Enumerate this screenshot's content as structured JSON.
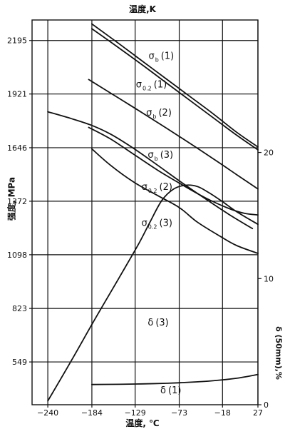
{
  "chart_data": {
    "type": "line",
    "title_top": "温度,K",
    "xlabel": "温度, ℃",
    "ylabel_left": "强度, MPa",
    "ylabel_right": "δ (50mm),%",
    "xlim": [
      -260,
      27
    ],
    "ylim_left": [
      330,
      2300
    ],
    "ylim_right": [
      0,
      30.5
    ],
    "x_ticks": [
      -240,
      -184,
      -129,
      -73,
      -18,
      27
    ],
    "y_ticks_left": [
      549,
      823,
      1098,
      1372,
      1646,
      1921,
      2195
    ],
    "y_ticks_right": [
      0,
      10,
      20
    ],
    "grid": true,
    "series": [
      {
        "name": "σb(1)",
        "axis": "left",
        "x": [
          -184,
          -150,
          -120,
          -90,
          -60,
          -30,
          0,
          27
        ],
        "y": [
          2280,
          2180,
          2090,
          2000,
          1910,
          1820,
          1725,
          1650
        ]
      },
      {
        "name": "σ0.2(1)",
        "axis": "left",
        "x": [
          -184,
          -150,
          -120,
          -90,
          -60,
          -30,
          0,
          27
        ],
        "y": [
          2255,
          2158,
          2070,
          1980,
          1890,
          1800,
          1710,
          1635
        ]
      },
      {
        "name": "σb(2)",
        "axis": "left",
        "x": [
          -188,
          -150,
          -120,
          -90,
          -60,
          -30,
          0,
          27
        ],
        "y": [
          1995,
          1900,
          1825,
          1748,
          1670,
          1590,
          1508,
          1435
        ]
      },
      {
        "name": "σb(3)",
        "axis": "left",
        "x": [
          -188,
          -160,
          -130,
          -100,
          -70,
          -40,
          -10,
          10,
          27
        ],
        "y": [
          1750,
          1690,
          1610,
          1530,
          1458,
          1390,
          1335,
          1310,
          1302
        ]
      },
      {
        "name": "σ0.2(2)",
        "axis": "left",
        "x": [
          -240,
          -210,
          -184,
          -160,
          -130,
          -100,
          -70,
          -40,
          -10,
          20
        ],
        "y": [
          1830,
          1795,
          1760,
          1715,
          1640,
          1555,
          1468,
          1385,
          1305,
          1232
        ]
      },
      {
        "name": "σ0.2(3)",
        "axis": "left",
        "x": [
          -184,
          -160,
          -130,
          -100,
          -73,
          -50,
          -20,
          0,
          27
        ],
        "y": [
          1640,
          1555,
          1468,
          1400,
          1340,
          1265,
          1190,
          1145,
          1105
        ]
      },
      {
        "name": "δ(3)",
        "axis": "right",
        "x": [
          -240,
          -210,
          -180,
          -150,
          -125,
          -110,
          -95,
          -80,
          -65,
          -50,
          -35,
          -18,
          0,
          27
        ],
        "y": [
          0.3,
          3.5,
          6.8,
          10,
          12.7,
          14.5,
          16.2,
          17.1,
          17.4,
          17.3,
          16.8,
          16.1,
          15.3,
          14.3
        ]
      },
      {
        "name": "δ(1)",
        "axis": "right",
        "x": [
          -184,
          -150,
          -120,
          -90,
          -60,
          -30,
          0,
          27
        ],
        "y": [
          1.6,
          1.62,
          1.65,
          1.7,
          1.78,
          1.9,
          2.1,
          2.4
        ]
      }
    ],
    "annotations": [
      {
        "series": "σb(1)",
        "sym": "σ",
        "sub": "b",
        "rest": "(1)",
        "x": -112,
        "y": 2100
      },
      {
        "series": "σ0.2(1)",
        "sym": "σ",
        "sub": "0.2",
        "rest": "(1)",
        "x": -128,
        "y": 1955
      },
      {
        "series": "σb(2)",
        "sym": "σ",
        "sub": "b",
        "rest": "(2)",
        "x": -115,
        "y": 1810
      },
      {
        "series": "σb(3)",
        "sym": "σ",
        "sub": "b",
        "rest": "(3)",
        "x": -113,
        "y": 1595
      },
      {
        "series": "σ0.2(2)",
        "sym": "σ",
        "sub": "0.2",
        "rest": "(2)",
        "x": -121,
        "y": 1430
      },
      {
        "series": "σ0.2(3)",
        "sym": "σ",
        "sub": "0.2",
        "rest": "(3)",
        "x": -121,
        "y": 1245
      },
      {
        "series": "δ(3)",
        "sym": "δ",
        "sub": "",
        "rest": "(3)",
        "x": -113,
        "y": 735
      },
      {
        "series": "δ(1)",
        "sym": "δ",
        "sub": "",
        "rest": "(1)",
        "x": -97,
        "y": 388
      }
    ]
  }
}
